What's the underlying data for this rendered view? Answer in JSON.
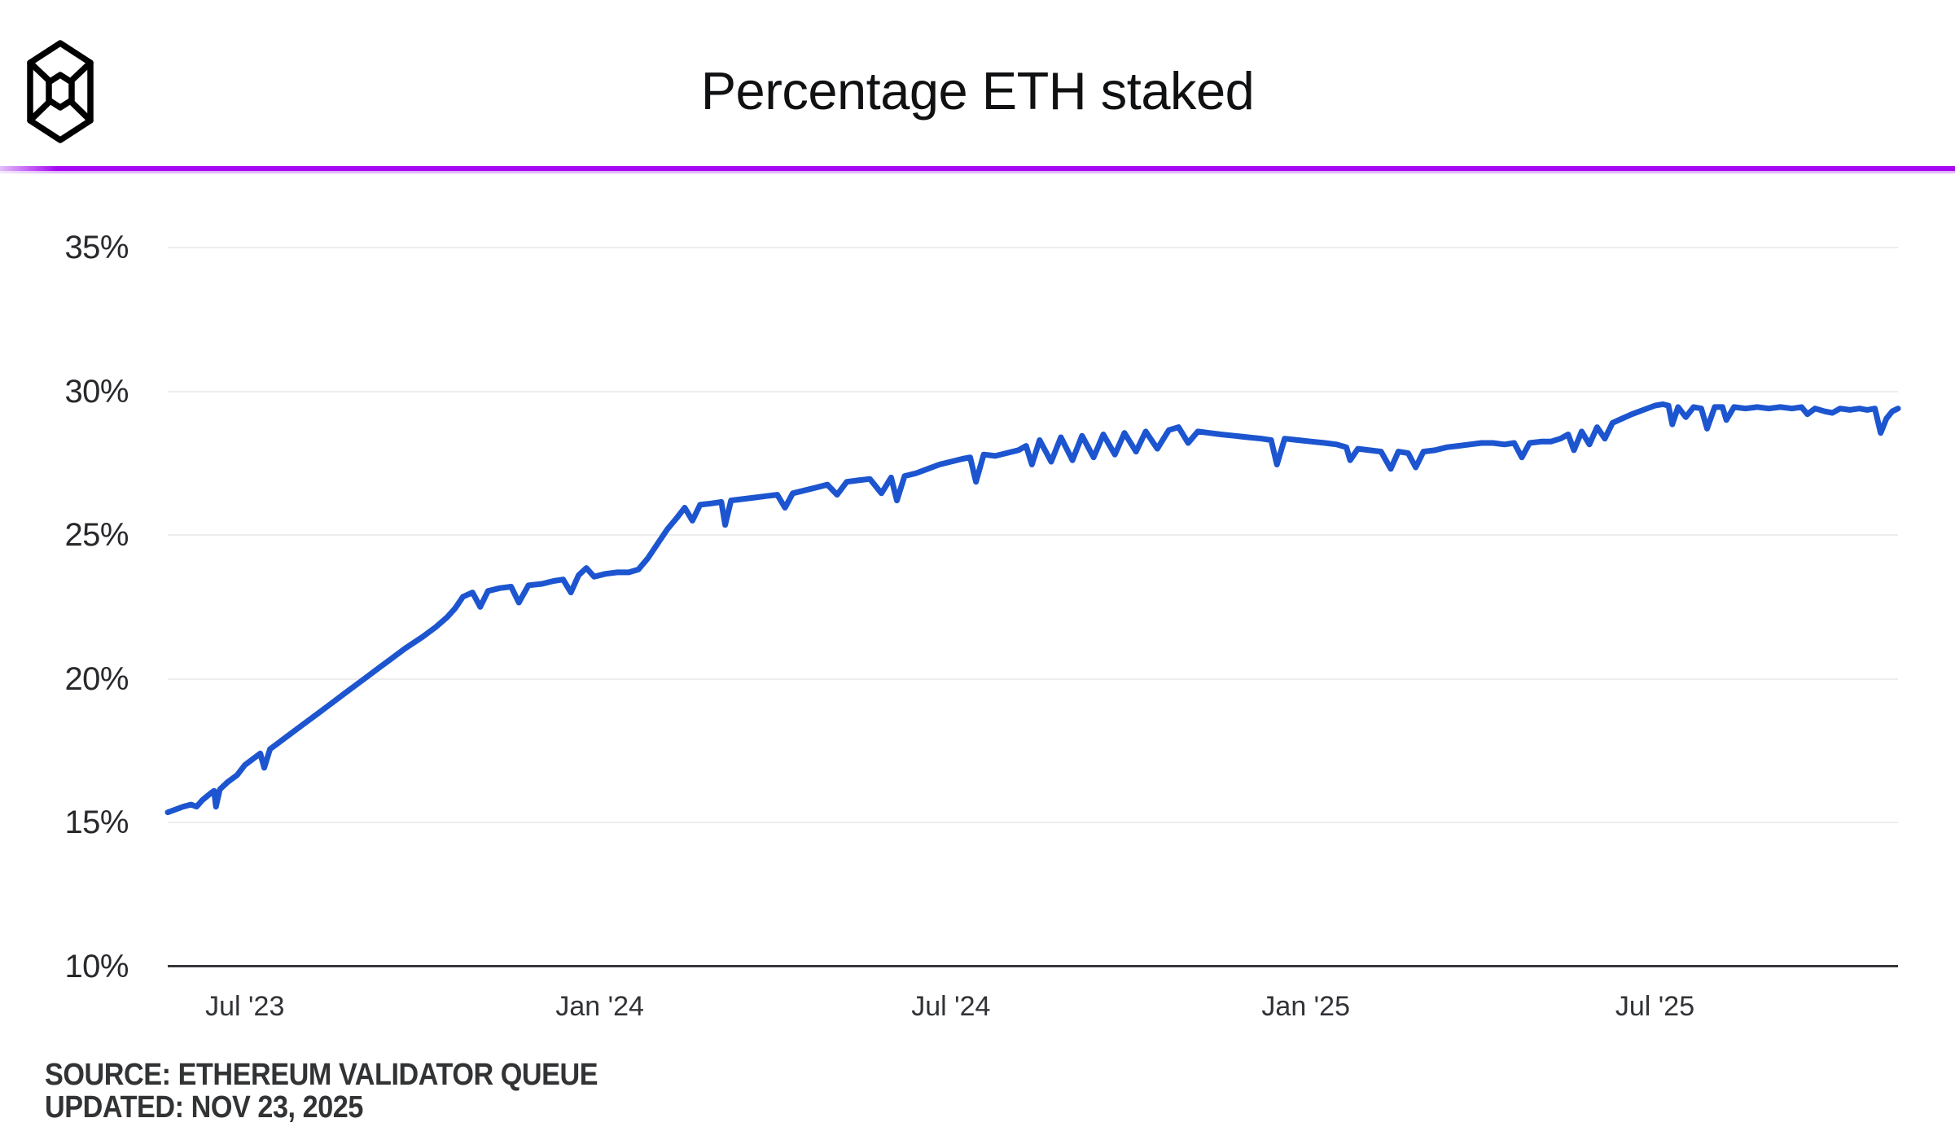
{
  "page": {
    "background": "#ffffff"
  },
  "header": {
    "logo_icon": "cube-logo",
    "title": "Percentage ETH staked",
    "divider_color": "#a507f2"
  },
  "footer": {
    "source": "SOURCE: ETHEREUM VALIDATOR QUEUE",
    "updated": "UPDATED: NOV 23, 2025"
  },
  "chart_data": {
    "type": "line",
    "title": "Percentage ETH staked",
    "xlabel": "",
    "ylabel": "",
    "legend": "none",
    "grid": "horizontal",
    "line_color": "#1c55cf",
    "gridline_color": "#ededed",
    "axis_color": "#35373a",
    "label_color": "#27292c",
    "x_domain": [
      "2023-05-22",
      "2025-11-04"
    ],
    "y_domain": [
      10,
      35
    ],
    "y_ticks": [
      {
        "value": 10,
        "label": "10%"
      },
      {
        "value": 15,
        "label": "15%"
      },
      {
        "value": 20,
        "label": "20%"
      },
      {
        "value": 25,
        "label": "25%"
      },
      {
        "value": 30,
        "label": "30%"
      },
      {
        "value": 35,
        "label": "35%"
      }
    ],
    "x_ticks": [
      {
        "date": "2023-07-01",
        "label": "Jul '23"
      },
      {
        "date": "2024-01-01",
        "label": "Jan '24"
      },
      {
        "date": "2024-07-01",
        "label": "Jul '24"
      },
      {
        "date": "2025-01-01",
        "label": "Jan '25"
      },
      {
        "date": "2025-07-01",
        "label": "Jul '25"
      }
    ],
    "series": [
      {
        "name": "Percentage ETH staked",
        "color": "#1c55cf",
        "points": [
          [
            "2023-05-22",
            15.35
          ],
          [
            "2023-05-26",
            15.45
          ],
          [
            "2023-05-30",
            15.55
          ],
          [
            "2023-06-03",
            15.62
          ],
          [
            "2023-06-06",
            15.55
          ],
          [
            "2023-06-09",
            15.78
          ],
          [
            "2023-06-13",
            16.0
          ],
          [
            "2023-06-15",
            16.1
          ],
          [
            "2023-06-16",
            15.55
          ],
          [
            "2023-06-18",
            16.15
          ],
          [
            "2023-06-22",
            16.4
          ],
          [
            "2023-06-27",
            16.65
          ],
          [
            "2023-07-01",
            17.0
          ],
          [
            "2023-07-06",
            17.25
          ],
          [
            "2023-07-09",
            17.4
          ],
          [
            "2023-07-11",
            16.9
          ],
          [
            "2023-07-14",
            17.55
          ],
          [
            "2023-07-19",
            17.8
          ],
          [
            "2023-07-25",
            18.1
          ],
          [
            "2023-08-01",
            18.45
          ],
          [
            "2023-08-08",
            18.8
          ],
          [
            "2023-08-15",
            19.15
          ],
          [
            "2023-08-22",
            19.5
          ],
          [
            "2023-09-01",
            20.0
          ],
          [
            "2023-09-08",
            20.35
          ],
          [
            "2023-09-15",
            20.7
          ],
          [
            "2023-09-22",
            21.05
          ],
          [
            "2023-10-01",
            21.45
          ],
          [
            "2023-10-08",
            21.8
          ],
          [
            "2023-10-14",
            22.15
          ],
          [
            "2023-10-18",
            22.45
          ],
          [
            "2023-10-22",
            22.85
          ],
          [
            "2023-10-27",
            23.0
          ],
          [
            "2023-10-31",
            22.5
          ],
          [
            "2023-11-04",
            23.05
          ],
          [
            "2023-11-10",
            23.15
          ],
          [
            "2023-11-16",
            23.2
          ],
          [
            "2023-11-20",
            22.65
          ],
          [
            "2023-11-25",
            23.25
          ],
          [
            "2023-12-02",
            23.3
          ],
          [
            "2023-12-08",
            23.4
          ],
          [
            "2023-12-13",
            23.45
          ],
          [
            "2023-12-17",
            23.0
          ],
          [
            "2023-12-21",
            23.6
          ],
          [
            "2023-12-25",
            23.85
          ],
          [
            "2023-12-29",
            23.55
          ],
          [
            "2024-01-04",
            23.65
          ],
          [
            "2024-01-10",
            23.7
          ],
          [
            "2024-01-16",
            23.7
          ],
          [
            "2024-01-21",
            23.8
          ],
          [
            "2024-01-26",
            24.2
          ],
          [
            "2024-01-31",
            24.7
          ],
          [
            "2024-02-05",
            25.2
          ],
          [
            "2024-02-10",
            25.6
          ],
          [
            "2024-02-14",
            25.95
          ],
          [
            "2024-02-18",
            25.5
          ],
          [
            "2024-02-22",
            26.05
          ],
          [
            "2024-02-28",
            26.1
          ],
          [
            "2024-03-04",
            26.15
          ],
          [
            "2024-03-06",
            25.35
          ],
          [
            "2024-03-09",
            26.2
          ],
          [
            "2024-03-15",
            26.25
          ],
          [
            "2024-03-21",
            26.3
          ],
          [
            "2024-03-27",
            26.35
          ],
          [
            "2024-04-02",
            26.4
          ],
          [
            "2024-04-06",
            25.95
          ],
          [
            "2024-04-10",
            26.45
          ],
          [
            "2024-04-16",
            26.55
          ],
          [
            "2024-04-22",
            26.65
          ],
          [
            "2024-04-28",
            26.75
          ],
          [
            "2024-05-03",
            26.4
          ],
          [
            "2024-05-08",
            26.85
          ],
          [
            "2024-05-14",
            26.9
          ],
          [
            "2024-05-20",
            26.95
          ],
          [
            "2024-05-26",
            26.45
          ],
          [
            "2024-05-31",
            27.0
          ],
          [
            "2024-06-03",
            26.2
          ],
          [
            "2024-06-07",
            27.05
          ],
          [
            "2024-06-13",
            27.15
          ],
          [
            "2024-06-19",
            27.3
          ],
          [
            "2024-06-25",
            27.45
          ],
          [
            "2024-07-01",
            27.55
          ],
          [
            "2024-07-07",
            27.65
          ],
          [
            "2024-07-11",
            27.7
          ],
          [
            "2024-07-14",
            26.85
          ],
          [
            "2024-07-18",
            27.8
          ],
          [
            "2024-07-24",
            27.75
          ],
          [
            "2024-07-30",
            27.85
          ],
          [
            "2024-08-05",
            27.95
          ],
          [
            "2024-08-09",
            28.1
          ],
          [
            "2024-08-12",
            27.45
          ],
          [
            "2024-08-16",
            28.3
          ],
          [
            "2024-08-22",
            27.55
          ],
          [
            "2024-08-27",
            28.4
          ],
          [
            "2024-09-02",
            27.6
          ],
          [
            "2024-09-07",
            28.45
          ],
          [
            "2024-09-13",
            27.7
          ],
          [
            "2024-09-18",
            28.5
          ],
          [
            "2024-09-24",
            27.8
          ],
          [
            "2024-09-29",
            28.55
          ],
          [
            "2024-10-05",
            27.9
          ],
          [
            "2024-10-10",
            28.6
          ],
          [
            "2024-10-16",
            28.0
          ],
          [
            "2024-10-22",
            28.65
          ],
          [
            "2024-10-27",
            28.75
          ],
          [
            "2024-11-01",
            28.2
          ],
          [
            "2024-11-06",
            28.6
          ],
          [
            "2024-11-12",
            28.55
          ],
          [
            "2024-11-18",
            28.5
          ],
          [
            "2024-11-25",
            28.45
          ],
          [
            "2024-12-02",
            28.4
          ],
          [
            "2024-12-09",
            28.35
          ],
          [
            "2024-12-14",
            28.3
          ],
          [
            "2024-12-17",
            27.45
          ],
          [
            "2024-12-21",
            28.35
          ],
          [
            "2024-12-28",
            28.3
          ],
          [
            "2025-01-04",
            28.25
          ],
          [
            "2025-01-11",
            28.2
          ],
          [
            "2025-01-17",
            28.15
          ],
          [
            "2025-01-22",
            28.05
          ],
          [
            "2025-01-24",
            27.6
          ],
          [
            "2025-01-28",
            28.0
          ],
          [
            "2025-02-03",
            27.95
          ],
          [
            "2025-02-09",
            27.9
          ],
          [
            "2025-02-14",
            27.3
          ],
          [
            "2025-02-18",
            27.9
          ],
          [
            "2025-02-23",
            27.85
          ],
          [
            "2025-02-27",
            27.35
          ],
          [
            "2025-03-03",
            27.9
          ],
          [
            "2025-03-09",
            27.95
          ],
          [
            "2025-03-15",
            28.05
          ],
          [
            "2025-03-21",
            28.1
          ],
          [
            "2025-03-27",
            28.15
          ],
          [
            "2025-04-02",
            28.2
          ],
          [
            "2025-04-08",
            28.2
          ],
          [
            "2025-04-14",
            28.15
          ],
          [
            "2025-04-19",
            28.2
          ],
          [
            "2025-04-23",
            27.7
          ],
          [
            "2025-04-27",
            28.2
          ],
          [
            "2025-05-03",
            28.25
          ],
          [
            "2025-05-08",
            28.25
          ],
          [
            "2025-05-13",
            28.35
          ],
          [
            "2025-05-17",
            28.5
          ],
          [
            "2025-05-20",
            27.95
          ],
          [
            "2025-05-24",
            28.6
          ],
          [
            "2025-05-28",
            28.15
          ],
          [
            "2025-06-01",
            28.75
          ],
          [
            "2025-06-05",
            28.35
          ],
          [
            "2025-06-09",
            28.9
          ],
          [
            "2025-06-14",
            29.05
          ],
          [
            "2025-06-19",
            29.2
          ],
          [
            "2025-06-25",
            29.35
          ],
          [
            "2025-07-01",
            29.5
          ],
          [
            "2025-07-05",
            29.55
          ],
          [
            "2025-07-08",
            29.5
          ],
          [
            "2025-07-10",
            28.85
          ],
          [
            "2025-07-13",
            29.45
          ],
          [
            "2025-07-17",
            29.1
          ],
          [
            "2025-07-21",
            29.45
          ],
          [
            "2025-07-25",
            29.4
          ],
          [
            "2025-07-28",
            28.7
          ],
          [
            "2025-08-01",
            29.45
          ],
          [
            "2025-08-05",
            29.45
          ],
          [
            "2025-08-07",
            29.0
          ],
          [
            "2025-08-11",
            29.45
          ],
          [
            "2025-08-17",
            29.4
          ],
          [
            "2025-08-23",
            29.45
          ],
          [
            "2025-08-29",
            29.4
          ],
          [
            "2025-09-04",
            29.45
          ],
          [
            "2025-09-10",
            29.4
          ],
          [
            "2025-09-15",
            29.45
          ],
          [
            "2025-09-18",
            29.2
          ],
          [
            "2025-09-22",
            29.4
          ],
          [
            "2025-09-27",
            29.3
          ],
          [
            "2025-10-01",
            29.25
          ],
          [
            "2025-10-05",
            29.4
          ],
          [
            "2025-10-10",
            29.35
          ],
          [
            "2025-10-15",
            29.4
          ],
          [
            "2025-10-19",
            29.35
          ],
          [
            "2025-10-23",
            29.4
          ],
          [
            "2025-10-26",
            28.55
          ],
          [
            "2025-10-29",
            29.05
          ],
          [
            "2025-11-01",
            29.3
          ],
          [
            "2025-11-04",
            29.4
          ]
        ]
      }
    ]
  }
}
